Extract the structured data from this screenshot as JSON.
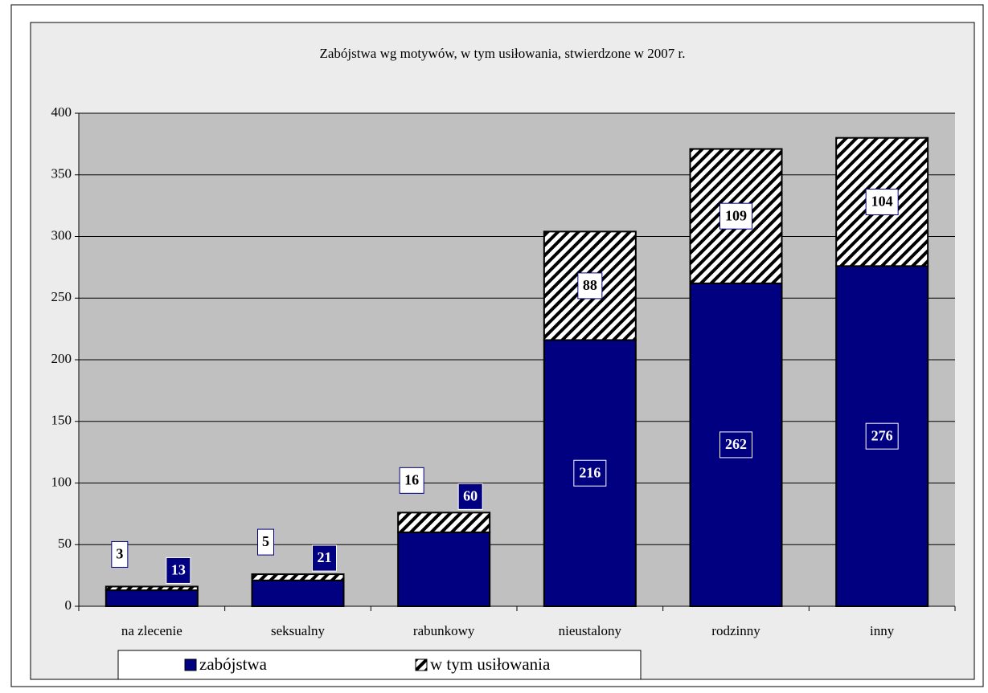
{
  "chart_data": {
    "type": "stacked_bar",
    "title": "Zabójstwa wg motywów, w tym usiłowania, stwierdzone w 2007 r.",
    "categories": [
      "na zlecenie",
      "seksualny",
      "rabunkowy",
      "nieustalony",
      "rodzinny",
      "inny"
    ],
    "series": [
      {
        "name": "zabójstwa",
        "color": "#000080",
        "values": [
          13,
          21,
          60,
          216,
          262,
          276
        ]
      },
      {
        "name": "w tym usiłowania",
        "color": "hatch",
        "values": [
          3,
          5,
          16,
          88,
          109,
          104
        ]
      }
    ],
    "ylim": [
      0,
      400
    ],
    "yticks": [
      0,
      50,
      100,
      150,
      200,
      250,
      300,
      350,
      400
    ],
    "grid": true
  }
}
